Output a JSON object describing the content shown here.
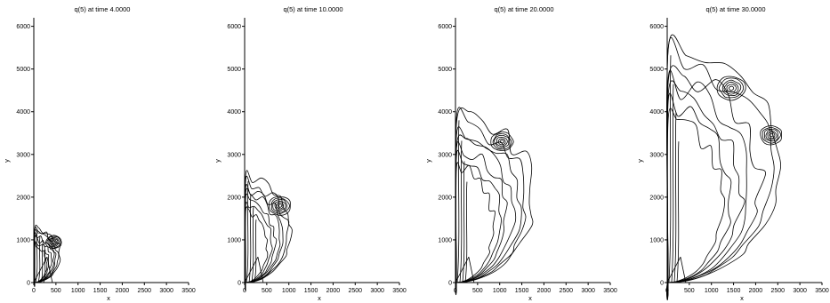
{
  "chart_data": [
    {
      "type": "contour",
      "title": "q(5) at time   4.0000",
      "xlabel": "x",
      "ylabel": "y",
      "xlim": [
        0,
        3500
      ],
      "ylim": [
        0,
        6200
      ],
      "xticks": [
        "0",
        "500",
        "1000",
        "1500",
        "2000",
        "2500",
        "3000",
        "3500"
      ],
      "yticks": [
        "0",
        "1000",
        "2000",
        "3000",
        "4000",
        "5000",
        "6000"
      ],
      "front": {
        "x_max": 600,
        "y_max": 1300
      },
      "vortices": [
        {
          "x": 450,
          "y": 950
        }
      ]
    },
    {
      "type": "contour",
      "title": "q(5) at time  10.0000",
      "xlabel": "x",
      "ylabel": "y",
      "xlim": [
        0,
        3500
      ],
      "ylim": [
        0,
        6200
      ],
      "xticks": [
        "0",
        "500",
        "1000",
        "1500",
        "2000",
        "2500",
        "3000",
        "3500"
      ],
      "yticks": [
        "0",
        "1000",
        "2000",
        "3000",
        "4000",
        "5000",
        "6000"
      ],
      "front": {
        "x_max": 1050,
        "y_max": 2500
      },
      "vortices": [
        {
          "x": 800,
          "y": 1800
        }
      ]
    },
    {
      "type": "contour",
      "title": "q(5) at time  20.0000",
      "xlabel": "x",
      "ylabel": "y",
      "xlim": [
        0,
        3500
      ],
      "ylim": [
        0,
        6200
      ],
      "xticks": [
        "0",
        "500",
        "1000",
        "1500",
        "2000",
        "2500",
        "3000",
        "3500"
      ],
      "yticks": [
        "0",
        "1000",
        "2000",
        "3000",
        "4000",
        "5000",
        "6000"
      ],
      "front": {
        "x_max": 1750,
        "y_max": 4000
      },
      "vortices": [
        {
          "x": 1050,
          "y": 3300
        }
      ]
    },
    {
      "type": "contour",
      "title": "q(5) at time  30.0000",
      "xlabel": "x",
      "ylabel": "y",
      "xlim": [
        0,
        3500
      ],
      "ylim": [
        0,
        6200
      ],
      "xticks": [
        "0",
        "500",
        "1000",
        "1500",
        "2000",
        "2500",
        "3000",
        "3500"
      ],
      "yticks": [
        "0",
        "1000",
        "2000",
        "3000",
        "4000",
        "5000",
        "6000"
      ],
      "front": {
        "x_max": 2550,
        "y_max": 5600
      },
      "vortices": [
        {
          "x": 1450,
          "y": 4550
        },
        {
          "x": 2350,
          "y": 3450
        }
      ]
    }
  ]
}
